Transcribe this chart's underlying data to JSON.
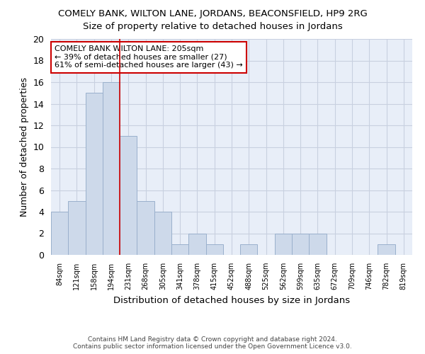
{
  "title1": "COMELY BANK, WILTON LANE, JORDANS, BEACONSFIELD, HP9 2RG",
  "title2": "Size of property relative to detached houses in Jordans",
  "xlabel": "Distribution of detached houses by size in Jordans",
  "ylabel": "Number of detached properties",
  "bin_labels": [
    "84sqm",
    "121sqm",
    "158sqm",
    "194sqm",
    "231sqm",
    "268sqm",
    "305sqm",
    "341sqm",
    "378sqm",
    "415sqm",
    "452sqm",
    "488sqm",
    "525sqm",
    "562sqm",
    "599sqm",
    "635sqm",
    "672sqm",
    "709sqm",
    "746sqm",
    "782sqm",
    "819sqm"
  ],
  "bar_values": [
    4,
    5,
    15,
    16,
    11,
    5,
    4,
    1,
    2,
    1,
    0,
    1,
    0,
    2,
    2,
    2,
    0,
    0,
    0,
    1,
    0
  ],
  "bar_color": "#cdd9ea",
  "bar_edge_color": "#9ab0cc",
  "vline_x_index": 3,
  "vline_color": "#cc0000",
  "ylim": [
    0,
    20
  ],
  "yticks": [
    0,
    2,
    4,
    6,
    8,
    10,
    12,
    14,
    16,
    18,
    20
  ],
  "annotation_text": "COMELY BANK WILTON LANE: 205sqm\n← 39% of detached houses are smaller (27)\n61% of semi-detached houses are larger (43) →",
  "annotation_box_color": "#ffffff",
  "annotation_box_edgecolor": "#cc0000",
  "footer1": "Contains HM Land Registry data © Crown copyright and database right 2024.",
  "footer2": "Contains public sector information licensed under the Open Government Licence v3.0.",
  "background_color": "#e8eef8",
  "fig_bg_color": "#ffffff",
  "grid_color": "#c8d0e0",
  "title1_fontsize": 9.5,
  "title2_fontsize": 9.5
}
